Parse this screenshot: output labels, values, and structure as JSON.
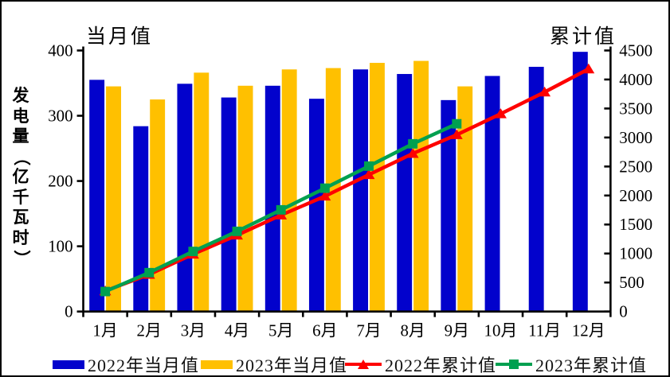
{
  "figure": {
    "left_scale_label": "当月值",
    "right_scale_label": "累计值"
  },
  "chart_data": {
    "type": "combo-bar-line",
    "title": "",
    "categories": [
      "1月",
      "2月",
      "3月",
      "4月",
      "5月",
      "6月",
      "7月",
      "8月",
      "9月",
      "10月",
      "11月",
      "12月"
    ],
    "left_axis": {
      "label": "当月值",
      "ylabel": "发电量（亿千瓦时）",
      "ylabel_chars": [
        "发",
        "电",
        "量",
        "（",
        "亿",
        "千",
        "瓦",
        "时",
        "）"
      ],
      "min": 0,
      "max": 400,
      "step": 100,
      "ticks": [
        "0",
        "100",
        "200",
        "300",
        "400"
      ]
    },
    "right_axis": {
      "label": "累计值",
      "min": 0,
      "max": 4500,
      "step": 500,
      "ticks": [
        "0",
        "500",
        "1000",
        "1500",
        "2000",
        "2500",
        "3000",
        "3500",
        "4000",
        "4500"
      ]
    },
    "grid": false,
    "legend_position": "bottom",
    "series": [
      {
        "name": "2022年当月值",
        "type": "bar",
        "axis": "left",
        "color": "#0202cc",
        "values": [
          355,
          284,
          349,
          328,
          346,
          326,
          371,
          364,
          324,
          361,
          375,
          398
        ]
      },
      {
        "name": "2023年当月值",
        "type": "bar",
        "axis": "left",
        "color": "#ffc000",
        "values": [
          345,
          325,
          366,
          346,
          371,
          373,
          381,
          384,
          345
        ]
      },
      {
        "name": "2022年累计值",
        "type": "line",
        "axis": "right",
        "color": "#fe0000",
        "marker": "triangle",
        "values": [
          355,
          639,
          988,
          1316,
          1662,
          1988,
          2359,
          2723,
          3047,
          3408,
          3783,
          4181
        ]
      },
      {
        "name": "2023年累计值",
        "type": "line",
        "axis": "right",
        "color": "#00a050",
        "marker": "square",
        "values": [
          345,
          670,
          1036,
          1382,
          1753,
          2126,
          2507,
          2891,
          3236
        ]
      }
    ],
    "colors": {
      "bar_2022": "#0202cc",
      "bar_2023": "#ffc000",
      "line_2022": "#fe0000",
      "line_2023": "#00a050",
      "axis": "#000000"
    }
  }
}
